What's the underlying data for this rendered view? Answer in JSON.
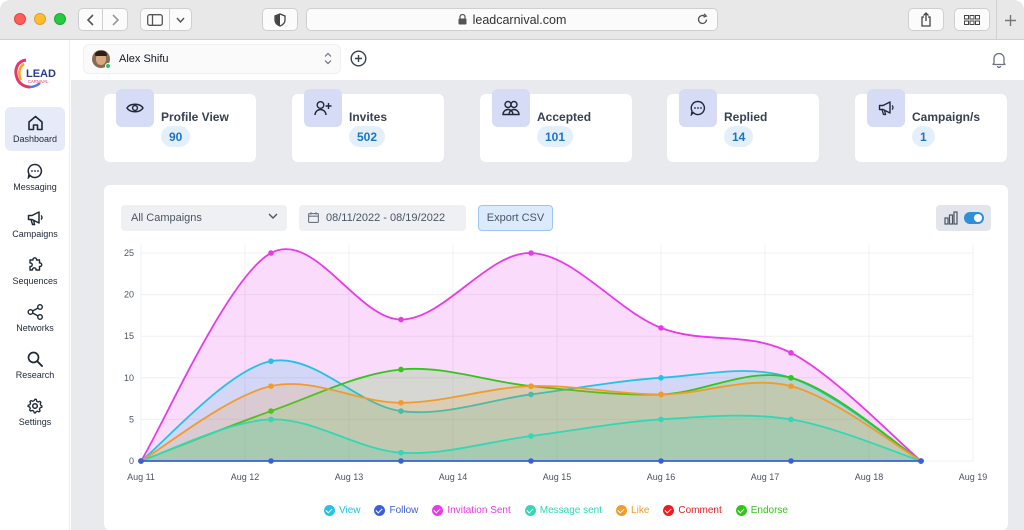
{
  "browser": {
    "url": "leadcarnival.com"
  },
  "brand": {
    "logo_text": "LEAD",
    "logo_subtext": "CARNIVAL"
  },
  "sidebar": {
    "items": [
      {
        "label": "Dashboard",
        "icon": "home-icon",
        "active": true
      },
      {
        "label": "Messaging",
        "icon": "chat-icon"
      },
      {
        "label": "Campaigns",
        "icon": "megaphone-icon"
      },
      {
        "label": "Sequences",
        "icon": "puzzle-icon"
      },
      {
        "label": "Networks",
        "icon": "share-icon"
      },
      {
        "label": "Research",
        "icon": "search-icon"
      },
      {
        "label": "Settings",
        "icon": "gear-icon"
      }
    ]
  },
  "topbar": {
    "profile_name": "Alex Shifu"
  },
  "stats": [
    {
      "title": "Profile View",
      "value": "90",
      "icon": "eye-icon"
    },
    {
      "title": "Invites",
      "value": "502",
      "icon": "user-plus-icon"
    },
    {
      "title": "Accepted",
      "value": "101",
      "icon": "users-icon"
    },
    {
      "title": "Replied",
      "value": "14",
      "icon": "chat-icon"
    },
    {
      "title": "Campaign/s",
      "value": "1",
      "icon": "megaphone-icon"
    }
  ],
  "filters": {
    "campaign": "All Campaigns",
    "date_range": "08/11/2022 - 08/19/2022",
    "export_label": "Export CSV"
  },
  "colors": {
    "accent": "#2f8fd8",
    "stat_icon_bg": "#d6dcf6",
    "stat_value_bg": "#e3f0fb"
  },
  "chart_data": {
    "type": "area",
    "x": [
      "Aug 11",
      "Aug 12",
      "Aug 13",
      "Aug 14",
      "Aug 15",
      "Aug 16",
      "Aug 17",
      "Aug 18",
      "Aug 19"
    ],
    "yticks": [
      0,
      5,
      10,
      15,
      20,
      25
    ],
    "ylim": [
      0,
      25
    ],
    "grid": true,
    "legend_position": "bottom",
    "series": [
      {
        "name": "View",
        "color": "#22c3e6",
        "points": [
          [
            0,
            0
          ],
          [
            1.25,
            12
          ],
          [
            2.5,
            6
          ],
          [
            3.75,
            8
          ],
          [
            5,
            10
          ],
          [
            6.25,
            10
          ],
          [
            7.5,
            0
          ]
        ]
      },
      {
        "name": "Follow",
        "color": "#3b5fd9",
        "points": [
          [
            0,
            0
          ],
          [
            1.25,
            0
          ],
          [
            2.5,
            0
          ],
          [
            3.75,
            0
          ],
          [
            5,
            0
          ],
          [
            6.25,
            0
          ],
          [
            7.5,
            0
          ]
        ]
      },
      {
        "name": "Invitation Sent",
        "color": "#e83ae8",
        "points": [
          [
            0,
            0
          ],
          [
            1.25,
            25
          ],
          [
            2.5,
            17
          ],
          [
            3.75,
            25
          ],
          [
            5,
            16
          ],
          [
            6.25,
            13
          ],
          [
            7.5,
            0
          ]
        ]
      },
      {
        "name": "Message sent",
        "color": "#33d7b4",
        "points": [
          [
            0,
            0
          ],
          [
            1.25,
            5
          ],
          [
            2.5,
            1
          ],
          [
            3.75,
            3
          ],
          [
            5,
            5
          ],
          [
            6.25,
            5
          ],
          [
            7.5,
            0
          ]
        ]
      },
      {
        "name": "Like",
        "color": "#f29b2c",
        "points": [
          [
            0,
            0
          ],
          [
            1.25,
            9
          ],
          [
            2.5,
            7
          ],
          [
            3.75,
            9
          ],
          [
            5,
            8
          ],
          [
            6.25,
            9
          ],
          [
            7.5,
            0
          ]
        ]
      },
      {
        "name": "Comment",
        "color": "#ee1c1c",
        "points": []
      },
      {
        "name": "Endorse",
        "color": "#34c51b",
        "points": [
          [
            0,
            0
          ],
          [
            1.25,
            6
          ],
          [
            2.5,
            11
          ],
          [
            3.75,
            9
          ],
          [
            5,
            8
          ],
          [
            6.25,
            10
          ],
          [
            7.5,
            0
          ]
        ]
      }
    ]
  }
}
